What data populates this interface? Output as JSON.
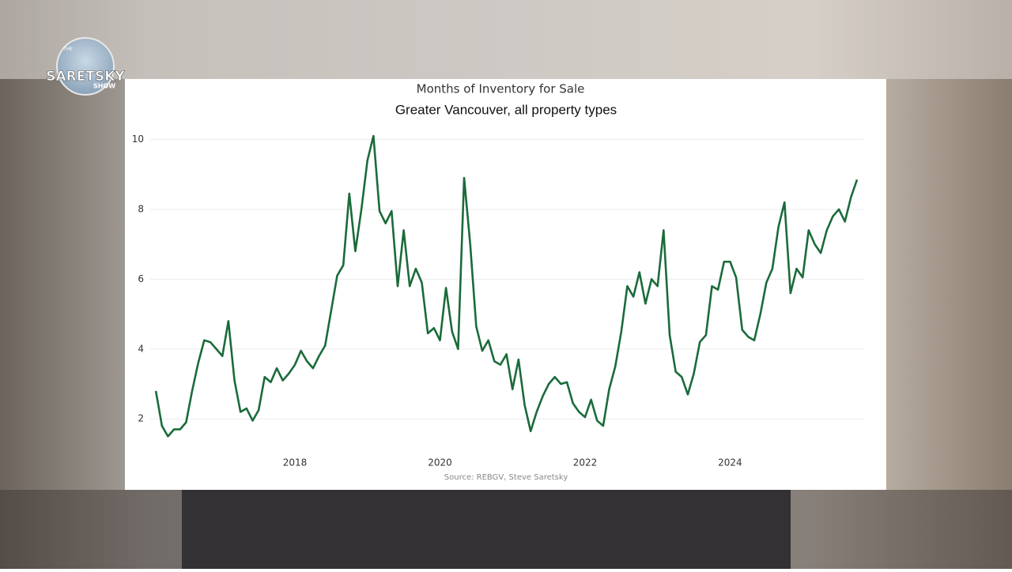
{
  "logo": [
    "THE",
    "SARETSKY",
    "SHOW"
  ],
  "chart_data": {
    "type": "line",
    "title": "Months of Inventory for Sale",
    "subtitle": "Greater Vancouver, all property types",
    "source": "Source: REBGV, Steve Saretsky",
    "x": [
      2016.083,
      2016.167,
      2016.25,
      2016.333,
      2016.417,
      2016.5,
      2016.583,
      2016.667,
      2016.75,
      2016.833,
      2016.917,
      2017.0,
      2017.083,
      2017.167,
      2017.25,
      2017.333,
      2017.417,
      2017.5,
      2017.583,
      2017.667,
      2017.75,
      2017.833,
      2017.917,
      2018.0,
      2018.083,
      2018.167,
      2018.25,
      2018.333,
      2018.417,
      2018.5,
      2018.583,
      2018.667,
      2018.75,
      2018.833,
      2018.917,
      2019.0,
      2019.083,
      2019.167,
      2019.25,
      2019.333,
      2019.417,
      2019.5,
      2019.583,
      2019.667,
      2019.75,
      2019.833,
      2019.917,
      2020.0,
      2020.083,
      2020.167,
      2020.25,
      2020.333,
      2020.417,
      2020.5,
      2020.583,
      2020.667,
      2020.75,
      2020.833,
      2020.917,
      2021.0,
      2021.083,
      2021.167,
      2021.25,
      2021.333,
      2021.417,
      2021.5,
      2021.583,
      2021.667,
      2021.75,
      2021.833,
      2021.917,
      2022.0,
      2022.083,
      2022.167,
      2022.25,
      2022.333,
      2022.417,
      2022.5,
      2022.583,
      2022.667,
      2022.75,
      2022.833,
      2022.917,
      2023.0,
      2023.083,
      2023.167,
      2023.25,
      2023.333,
      2023.417,
      2023.5,
      2023.583,
      2023.667,
      2023.75,
      2023.833,
      2023.917,
      2024.0,
      2024.083,
      2024.167,
      2024.25,
      2024.333,
      2024.417,
      2024.5,
      2024.583,
      2024.667,
      2024.75,
      2024.833,
      2024.917,
      2025.0,
      2025.083,
      2025.167,
      2025.25,
      2025.333,
      2025.417,
      2025.5,
      2025.583,
      2025.667,
      2025.75
    ],
    "series": [
      {
        "name": "Months of Inventory",
        "color": "#1b6b3a",
        "values": [
          2.8,
          1.8,
          1.5,
          1.7,
          1.7,
          1.9,
          2.8,
          3.6,
          4.25,
          4.2,
          4.0,
          3.8,
          4.8,
          3.1,
          2.2,
          2.3,
          1.95,
          2.25,
          3.2,
          3.05,
          3.45,
          3.1,
          3.3,
          3.55,
          3.95,
          3.65,
          3.45,
          3.8,
          4.1,
          5.1,
          6.1,
          6.4,
          8.45,
          6.8,
          8.0,
          9.4,
          10.1,
          7.95,
          7.6,
          7.95,
          5.8,
          7.4,
          5.8,
          6.3,
          5.9,
          4.45,
          4.6,
          4.25,
          5.75,
          4.5,
          4.0,
          8.9,
          7.0,
          4.65,
          3.95,
          4.25,
          3.65,
          3.55,
          3.85,
          2.85,
          3.7,
          2.4,
          1.65,
          2.2,
          2.65,
          3.0,
          3.2,
          3.0,
          3.05,
          2.45,
          2.2,
          2.05,
          2.55,
          1.95,
          1.8,
          2.85,
          3.5,
          4.5,
          5.8,
          5.5,
          6.2,
          5.3,
          6.0,
          5.8,
          7.4,
          4.4,
          3.35,
          3.2,
          2.7,
          3.3,
          4.2,
          4.4,
          5.8,
          5.7,
          6.5,
          6.5,
          6.05,
          4.55,
          4.35,
          4.25,
          5.0,
          5.9,
          6.3,
          7.5,
          8.2,
          5.6,
          6.3,
          6.05,
          7.4,
          7.0,
          6.75,
          7.4,
          7.8,
          8.0,
          7.65,
          8.35,
          8.85
        ]
      }
    ],
    "xlim": [
      2015.82,
      2025.87
    ],
    "xticks": [
      2018,
      2020,
      2022,
      2024
    ],
    "ylim": [
      1.1,
      10.6
    ],
    "yticks": [
      2,
      4,
      6,
      8,
      10
    ],
    "grid": true
  }
}
